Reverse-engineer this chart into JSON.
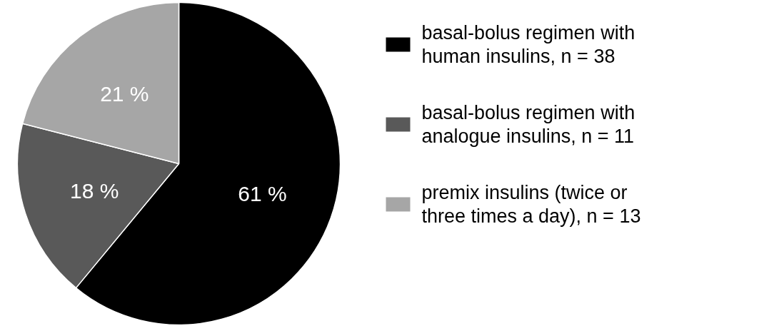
{
  "chart_data": {
    "type": "pie",
    "categories": [
      "basal-bolus regimen with human insulins, n = 38",
      "basal-bolus regimen with analogue insulins, n = 11",
      "premix insulins (twice or three times a day), n = 13"
    ],
    "values": [
      61,
      18,
      21
    ],
    "colors": [
      "#000000",
      "#595959",
      "#a6a6a6"
    ],
    "value_labels": [
      "61 %",
      "18 %",
      "21 %"
    ],
    "legend": "right"
  }
}
